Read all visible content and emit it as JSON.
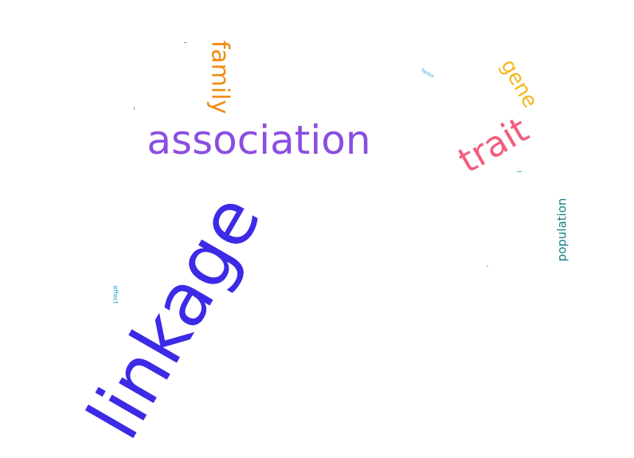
{
  "word_cloud": {
    "words": [
      {
        "text": "linkage",
        "color": "#3d2ae6",
        "rotation_deg": -60
      },
      {
        "text": "association",
        "color": "#8a4ee0",
        "rotation_deg": 0
      },
      {
        "text": "trait",
        "color": "#f45c7c",
        "rotation_deg": -30
      },
      {
        "text": "family",
        "color": "#f08a12",
        "rotation_deg": 90
      },
      {
        "text": "gene",
        "color": "#f4b81b",
        "rotation_deg": 60
      },
      {
        "text": "population",
        "color": "#17808a",
        "rotation_deg": -90
      },
      {
        "text": "effect",
        "color": "#1aa0c8",
        "rotation_deg": 90
      },
      {
        "text": "factor",
        "color": "#1aa0c8",
        "rotation_deg": 30
      }
    ]
  }
}
